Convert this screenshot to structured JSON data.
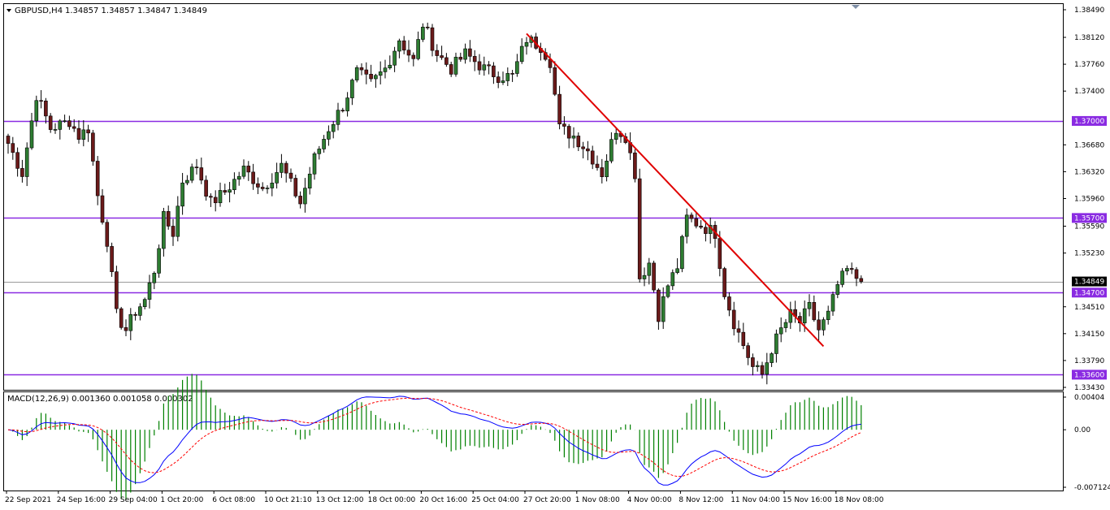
{
  "chart_data": {
    "type": "candlestick",
    "header": {
      "symbol": "GBPUSD,H4",
      "ohlc": "1.34857 1.34857 1.34847 1.34849"
    },
    "price_axis": {
      "ylim": [
        1.3343,
        1.3849
      ],
      "ticks": [
        "1.38490",
        "1.38120",
        "1.37760",
        "1.37400",
        "1.37000",
        "1.36680",
        "1.36320",
        "1.35960",
        "1.35700",
        "1.35590",
        "1.35230",
        "1.34849",
        "1.34700",
        "1.34510",
        "1.34150",
        "1.33790",
        "1.33600",
        "1.33430"
      ],
      "tick_values": [
        1.3849,
        1.3812,
        1.3776,
        1.374,
        1.37,
        1.3668,
        1.3632,
        1.3596,
        1.357,
        1.3559,
        1.3523,
        1.34849,
        1.347,
        1.3451,
        1.3415,
        1.3379,
        1.336,
        1.3343
      ],
      "current_price": "1.34849",
      "current_value": 1.34849
    },
    "horizontal_levels": [
      {
        "label": "1.37000",
        "value": 1.37,
        "color": "#8a2be2"
      },
      {
        "label": "1.35700",
        "value": 1.357,
        "color": "#8a2be2"
      },
      {
        "label": "1.34700",
        "value": 1.347,
        "color": "#8a2be2"
      },
      {
        "label": "1.33600",
        "value": 1.336,
        "color": "#8a2be2"
      }
    ],
    "trendline": {
      "color": "#e00000",
      "from_bar": 110,
      "from_value": 1.3817,
      "to_bar": 173,
      "to_value": 1.3398
    },
    "time_axis": {
      "labels": [
        "22 Sep 2021",
        "24 Sep 16:00",
        "29 Sep 04:00",
        "1 Oct 20:00",
        "6 Oct 08:00",
        "10 Oct 21:10",
        "13 Oct 12:00",
        "18 Oct 00:00",
        "20 Oct 16:00",
        "25 Oct 04:00",
        "27 Oct 20:00",
        "1 Nov 08:00",
        "4 Nov 00:00",
        "8 Nov 12:00",
        "11 Nov 04:00",
        "15 Nov 16:00",
        "18 Nov 08:00"
      ],
      "label_bars": [
        0,
        11,
        22,
        33,
        44,
        55,
        66,
        77,
        88,
        99,
        110,
        121,
        132,
        143,
        154,
        165,
        176
      ]
    },
    "anchors": [
      [
        0,
        1.367
      ],
      [
        3,
        1.363
      ],
      [
        6,
        1.3735
      ],
      [
        9,
        1.369
      ],
      [
        13,
        1.37
      ],
      [
        15,
        1.368
      ],
      [
        17,
        1.369
      ],
      [
        19,
        1.36
      ],
      [
        21,
        1.354
      ],
      [
        23,
        1.344
      ],
      [
        25,
        1.342
      ],
      [
        27,
        1.3445
      ],
      [
        29,
        1.346
      ],
      [
        31,
        1.35
      ],
      [
        33,
        1.357
      ],
      [
        35,
        1.355
      ],
      [
        37,
        1.362
      ],
      [
        40,
        1.364
      ],
      [
        43,
        1.359
      ],
      [
        46,
        1.3605
      ],
      [
        50,
        1.3635
      ],
      [
        54,
        1.361
      ],
      [
        58,
        1.364
      ],
      [
        62,
        1.359
      ],
      [
        65,
        1.365
      ],
      [
        68,
        1.369
      ],
      [
        71,
        1.372
      ],
      [
        74,
        1.3765
      ],
      [
        77,
        1.375
      ],
      [
        80,
        1.377
      ],
      [
        83,
        1.381
      ],
      [
        86,
        1.378
      ],
      [
        88,
        1.383
      ],
      [
        91,
        1.379
      ],
      [
        94,
        1.377
      ],
      [
        97,
        1.379
      ],
      [
        101,
        1.377
      ],
      [
        104,
        1.376
      ],
      [
        107,
        1.376
      ],
      [
        110,
        1.381
      ],
      [
        113,
        1.38
      ],
      [
        115,
        1.378
      ],
      [
        117,
        1.369
      ],
      [
        120,
        1.368
      ],
      [
        123,
        1.366
      ],
      [
        126,
        1.363
      ],
      [
        129,
        1.369
      ],
      [
        131,
        1.368
      ],
      [
        133,
        1.363
      ],
      [
        134,
        1.349
      ],
      [
        136,
        1.351
      ],
      [
        138,
        1.344
      ],
      [
        140,
        1.348
      ],
      [
        142,
        1.3505
      ],
      [
        144,
        1.357
      ],
      [
        147,
        1.356
      ],
      [
        150,
        1.355
      ],
      [
        152,
        1.347
      ],
      [
        154,
        1.343
      ],
      [
        156,
        1.34
      ],
      [
        158,
        1.337
      ],
      [
        160,
        1.336
      ],
      [
        162,
        1.3395
      ],
      [
        164,
        1.342
      ],
      [
        166,
        1.344
      ],
      [
        168,
        1.343
      ],
      [
        170,
        1.345
      ],
      [
        172,
        1.342
      ],
      [
        174,
        1.344
      ],
      [
        176,
        1.348
      ],
      [
        178,
        1.35
      ],
      [
        180,
        1.349
      ],
      [
        181,
        1.34849
      ]
    ],
    "macd": {
      "label": "MACD(12,26,9) 0.001360 0.001058 0.000302",
      "ylim": [
        -0.007124,
        0.00404
      ],
      "ticks": [
        "0.00404",
        "0.00",
        "-0.007124"
      ],
      "tick_values": [
        0.00404,
        0.0,
        -0.007124
      ],
      "main_color": "#0000ff",
      "signal_color": "#ff0000",
      "histogram_color": "#008000"
    }
  }
}
